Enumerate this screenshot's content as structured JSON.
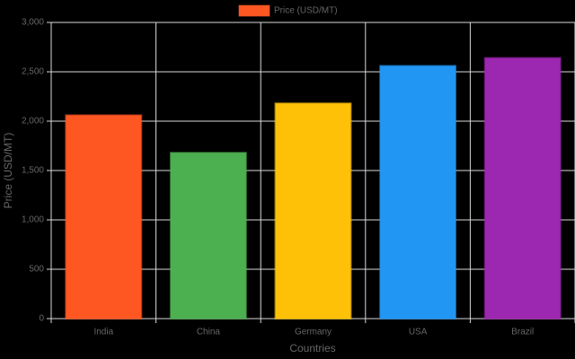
{
  "chart_data": {
    "type": "bar",
    "x_label": "Countries",
    "y_label": "Price (USD/MT)",
    "categories": [
      "India",
      "China",
      "Germany",
      "USA",
      "Brazil"
    ],
    "series": [
      {
        "name": "Price (USD/MT)",
        "colors": [
          "#ff5722",
          "#4caf50",
          "#ffc107",
          "#2196f3",
          "#9c27b0"
        ],
        "values": [
          2060,
          1680,
          2180,
          2560,
          2640
        ]
      }
    ],
    "ylim": [
      0,
      3000
    ],
    "yticks": [
      0,
      500,
      {
        "value": 1000,
        "label": "1,000"
      },
      {
        "value": 1500,
        "label": "1,500"
      },
      {
        "value": 2000,
        "label": "2,000"
      },
      {
        "value": 2500,
        "label": "2,500"
      },
      {
        "value": 3000,
        "label": "3,000"
      }
    ],
    "grid": true,
    "legend": "top"
  }
}
